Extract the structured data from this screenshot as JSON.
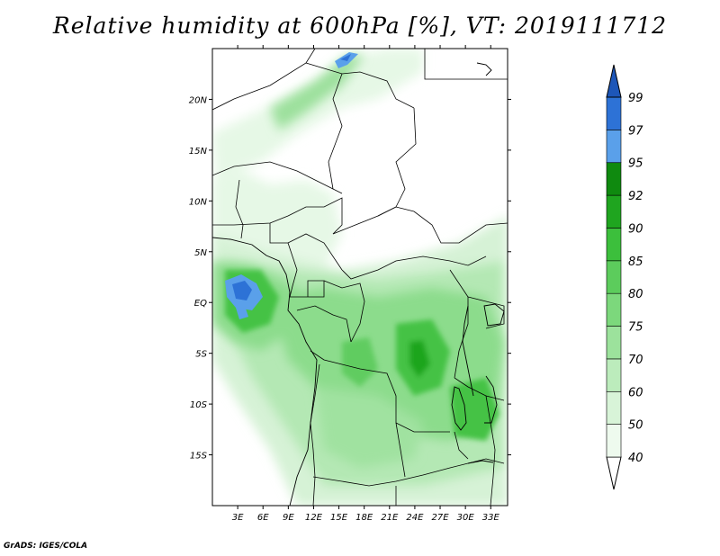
{
  "title": "Relative humidity at 600hPa [%], VT: 2019111712",
  "credit": "GrADS: IGES/COLA",
  "map": {
    "variable": "Relative humidity",
    "level": "600hPa",
    "units": "%",
    "valid_time": "2019111712",
    "lon_range": [
      0,
      35
    ],
    "lat_range": [
      -20,
      25
    ],
    "lat_ticks": [
      {
        "label": "20N",
        "value": 20
      },
      {
        "label": "15N",
        "value": 15
      },
      {
        "label": "10N",
        "value": 10
      },
      {
        "label": "5N",
        "value": 5
      },
      {
        "label": "EQ",
        "value": 0
      },
      {
        "label": "5S",
        "value": -5
      },
      {
        "label": "10S",
        "value": -10
      },
      {
        "label": "15S",
        "value": -15
      }
    ],
    "lon_ticks": [
      {
        "label": "3E",
        "value": 3
      },
      {
        "label": "6E",
        "value": 6
      },
      {
        "label": "9E",
        "value": 9
      },
      {
        "label": "12E",
        "value": 12
      },
      {
        "label": "15E",
        "value": 15
      },
      {
        "label": "18E",
        "value": 18
      },
      {
        "label": "21E",
        "value": 21
      },
      {
        "label": "24E",
        "value": 24
      },
      {
        "label": "27E",
        "value": 27
      },
      {
        "label": "30E",
        "value": 30
      },
      {
        "label": "33E",
        "value": 33
      }
    ]
  },
  "colorbar": {
    "bins": [
      {
        "label": "40",
        "value": 40,
        "color": "#eefaee"
      },
      {
        "label": "50",
        "value": 50,
        "color": "#d8f4d8"
      },
      {
        "label": "60",
        "value": 60,
        "color": "#bcecbc"
      },
      {
        "label": "70",
        "value": 70,
        "color": "#9ce29c"
      },
      {
        "label": "75",
        "value": 75,
        "color": "#7cd87c"
      },
      {
        "label": "80",
        "value": 80,
        "color": "#5ccc5c"
      },
      {
        "label": "85",
        "value": 85,
        "color": "#3cbf3c"
      },
      {
        "label": "90",
        "value": 90,
        "color": "#1fa51f"
      },
      {
        "label": "92",
        "value": 92,
        "color": "#0f8a0f"
      },
      {
        "label": "95",
        "value": 95,
        "color": "#5aa0ea"
      },
      {
        "label": "97",
        "value": 97,
        "color": "#2d72d6"
      },
      {
        "label": "99",
        "value": 99,
        "color": "#1d56b8"
      }
    ],
    "below_color": "#ffffff",
    "above_color": "#1d56b8"
  }
}
